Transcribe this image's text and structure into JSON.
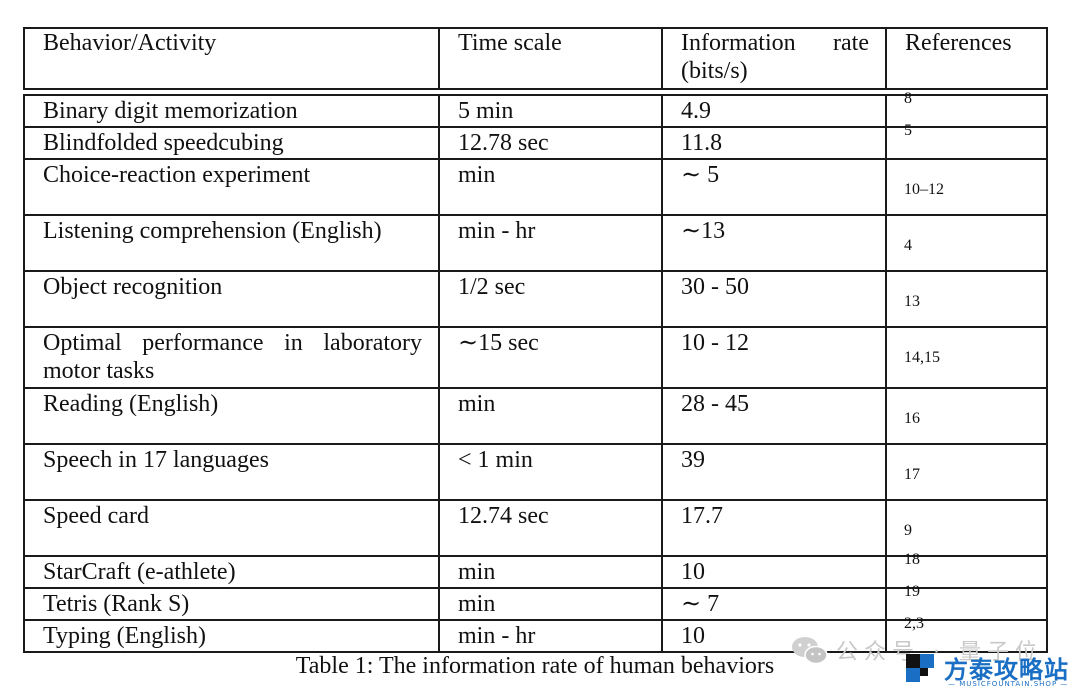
{
  "table": {
    "headers": [
      "Behavior/Activity",
      "Time scale",
      "Information rate (bits/s)",
      "References"
    ],
    "header_rate_line1_a": "Information",
    "header_rate_line1_b": "rate",
    "header_rate_line2": "(bits/s)",
    "rows": [
      {
        "activity": "Binary digit memorization",
        "time": "5 min",
        "rate": "4.9",
        "ref": "8"
      },
      {
        "activity": "Blindfolded speedcubing",
        "time": "12.78 sec",
        "rate": "11.8",
        "ref": "5"
      },
      {
        "activity": "Choice-reaction experiment",
        "time": "min",
        "rate": "∼ 5",
        "ref": "10–12"
      },
      {
        "activity": "Listening comprehension (English)",
        "time": "min - hr",
        "rate": "∼13",
        "ref": "4"
      },
      {
        "activity": "Object recognition",
        "time": "1/2 sec",
        "rate": "30 - 50",
        "ref": "13"
      },
      {
        "activity_line1_a": "Optimal",
        "activity_line1_b": "performance",
        "activity_line1_c": "in",
        "activity_line1_d": "laboratory",
        "activity_line2": "motor tasks",
        "activity": "Optimal performance in laboratory motor tasks",
        "time": "∼15 sec",
        "rate": "10 - 12",
        "ref": "14,15"
      },
      {
        "activity": "Reading (English)",
        "time": "min",
        "rate": "28 - 45",
        "ref": "16"
      },
      {
        "activity": "Speech in 17 languages",
        "time": "< 1 min",
        "rate": "39",
        "ref": "17"
      },
      {
        "activity": "Speed card",
        "time": "12.74 sec",
        "rate": "17.7",
        "ref": "9"
      },
      {
        "activity": "StarCraft (e-athlete)",
        "time": "min",
        "rate": "10",
        "ref": "18"
      },
      {
        "activity": "Tetris (Rank S)",
        "time": "min",
        "rate": "∼ 7",
        "ref": "19"
      },
      {
        "activity": "Typing (English)",
        "time": "min - hr",
        "rate": "10",
        "ref": "2,3"
      }
    ]
  },
  "caption": "Table 1: The information rate of human behaviors",
  "watermark": {
    "text": "公众号 · 量子位",
    "brand": "方泰攻略站",
    "sub": "— MUSICFOUNTAIN.SHOP —",
    "brand_color": "#1a6fc4"
  }
}
